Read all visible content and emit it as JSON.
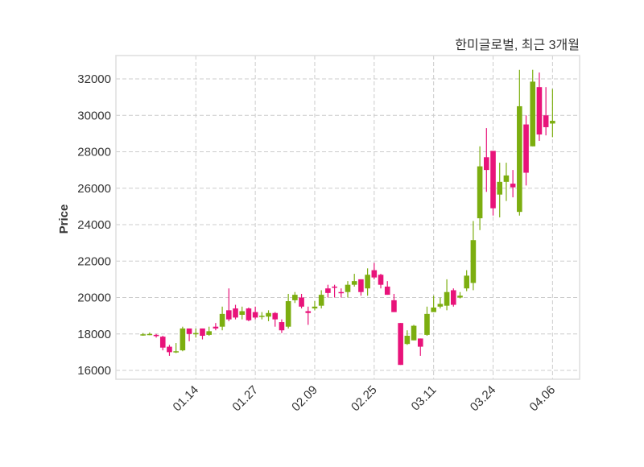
{
  "chart_data": {
    "type": "candlestick",
    "title": "한미글로벌, 최근 3개월",
    "xlabel": "",
    "ylabel": "Price",
    "ylim": [
      15514,
      33282
    ],
    "xlim": [
      -4.1,
      66.1
    ],
    "yticks": [
      16000,
      18000,
      20000,
      22000,
      24000,
      26000,
      28000,
      30000,
      32000
    ],
    "xticks": [
      {
        "index": 8,
        "label": "01.14"
      },
      {
        "index": 17,
        "label": "01.27"
      },
      {
        "index": 26,
        "label": "02.09"
      },
      {
        "index": 35,
        "label": "02.25"
      },
      {
        "index": 44,
        "label": "03.11"
      },
      {
        "index": 53,
        "label": "03.24"
      },
      {
        "index": 62,
        "label": "04.06"
      }
    ],
    "grid": true,
    "colors": {
      "up": "#7cae10",
      "down": "#e8137a",
      "grid": "#cccccc",
      "frame": "#dddddd"
    },
    "ohlc": [
      [
        17950,
        18050,
        17900,
        17980
      ],
      [
        17980,
        18080,
        17930,
        18000
      ],
      [
        17950,
        18000,
        17800,
        17880
      ],
      [
        17850,
        17900,
        17100,
        17250
      ],
      [
        17300,
        17400,
        16800,
        17000
      ],
      [
        17000,
        17500,
        16950,
        17050
      ],
      [
        17100,
        18400,
        17050,
        18300
      ],
      [
        18300,
        18300,
        17600,
        18000
      ],
      [
        17980,
        18300,
        17800,
        18050
      ],
      [
        18300,
        18300,
        17700,
        17900
      ],
      [
        17950,
        18400,
        17900,
        18150
      ],
      [
        18400,
        18600,
        18200,
        18300
      ],
      [
        18400,
        19500,
        18200,
        19100
      ],
      [
        19300,
        20500,
        18700,
        18800
      ],
      [
        19400,
        19600,
        18800,
        18900
      ],
      [
        19050,
        19500,
        18800,
        19250
      ],
      [
        19400,
        19450,
        18700,
        18750
      ],
      [
        19200,
        19500,
        18800,
        18900
      ],
      [
        18950,
        19200,
        18800,
        19000
      ],
      [
        18950,
        19300,
        18700,
        19150
      ],
      [
        19150,
        19200,
        18400,
        18800
      ],
      [
        18650,
        18800,
        18050,
        18200
      ],
      [
        18400,
        20200,
        18300,
        19800
      ],
      [
        19850,
        20300,
        19700,
        20150
      ],
      [
        20000,
        20200,
        19400,
        19500
      ],
      [
        19250,
        19500,
        18500,
        19150
      ],
      [
        19400,
        19800,
        19300,
        19500
      ],
      [
        19550,
        20400,
        19400,
        20150
      ],
      [
        20500,
        20700,
        20000,
        20250
      ],
      [
        20600,
        20700,
        20000,
        20550
      ],
      [
        20300,
        20500,
        20000,
        20250
      ],
      [
        20300,
        20900,
        20000,
        20700
      ],
      [
        20700,
        21300,
        20600,
        20900
      ],
      [
        21000,
        21000,
        20100,
        20300
      ],
      [
        20500,
        21600,
        20100,
        21250
      ],
      [
        21500,
        21900,
        21000,
        21100
      ],
      [
        21250,
        21300,
        20500,
        20700
      ],
      [
        20600,
        20900,
        20150,
        20150
      ],
      [
        19850,
        20200,
        19200,
        19200
      ],
      [
        18600,
        18600,
        16300,
        16300
      ],
      [
        17450,
        18200,
        17400,
        17900
      ],
      [
        17650,
        18500,
        17650,
        18450
      ],
      [
        17750,
        17750,
        16800,
        17300
      ],
      [
        17950,
        19500,
        17900,
        19100
      ],
      [
        19200,
        20100,
        19200,
        19450
      ],
      [
        19500,
        20000,
        19400,
        19650
      ],
      [
        19550,
        21000,
        19300,
        20300
      ],
      [
        20400,
        20500,
        19500,
        19600
      ],
      [
        20000,
        20300,
        19950,
        20100
      ],
      [
        20500,
        21500,
        20350,
        21200
      ],
      [
        20800,
        24200,
        20400,
        23150
      ],
      [
        24350,
        28300,
        23700,
        27200
      ],
      [
        27700,
        29300,
        25800,
        27000
      ],
      [
        28050,
        28050,
        24500,
        24900
      ],
      [
        25650,
        27400,
        24400,
        26350
      ],
      [
        26350,
        27400,
        25300,
        26700
      ],
      [
        26250,
        27000,
        25500,
        26050
      ],
      [
        24700,
        32500,
        24500,
        30500
      ],
      [
        29500,
        30000,
        26150,
        26850
      ],
      [
        28300,
        32500,
        28300,
        31850
      ],
      [
        31550,
        32350,
        28600,
        28950
      ],
      [
        30000,
        31550,
        28900,
        29350
      ],
      [
        29550,
        31450,
        28800,
        29700
      ]
    ]
  }
}
